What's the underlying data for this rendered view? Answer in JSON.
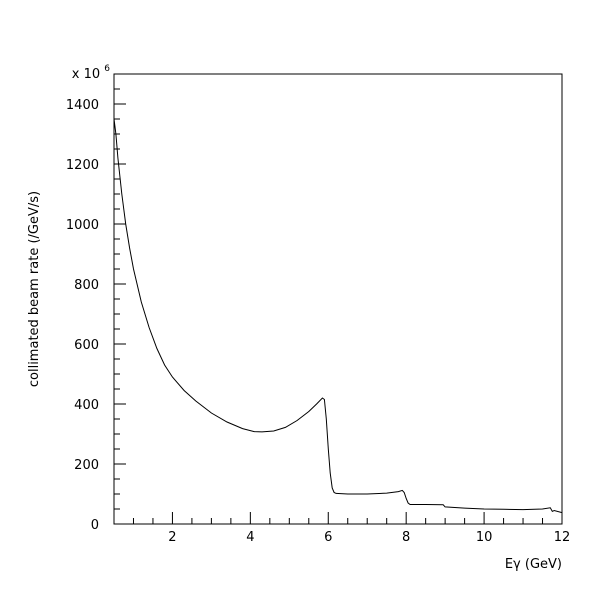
{
  "chart_data": {
    "type": "line",
    "title": "",
    "xlabel": "Eγ (GeV)",
    "ylabel": "collimated beam rate (/GeV/s)",
    "y_multiplier_label": "x 10",
    "y_multiplier_exponent": "6",
    "xlim": [
      0.5,
      12
    ],
    "ylim": [
      0,
      1500
    ],
    "x_ticks": [
      2,
      4,
      6,
      8,
      10,
      12
    ],
    "x_tick_labels": [
      "2",
      "4",
      "6",
      "8",
      "10",
      "12"
    ],
    "y_ticks": [
      0,
      200,
      400,
      600,
      800,
      1000,
      1200,
      1400
    ],
    "y_tick_labels": [
      "0",
      "200",
      "400",
      "600",
      "800",
      "1000",
      "1200",
      "1400"
    ],
    "grid": false,
    "legend": "none",
    "line_color": "#000000",
    "series": [
      {
        "x": [
          0.5,
          0.55,
          0.6,
          0.7,
          0.8,
          0.9,
          1.0,
          1.2,
          1.4,
          1.6,
          1.8,
          2.0,
          2.3,
          2.6,
          3.0,
          3.4,
          3.8,
          4.1,
          4.3,
          4.6,
          4.9,
          5.2,
          5.5,
          5.7,
          5.85,
          5.9,
          5.95,
          6.0,
          6.05,
          6.1,
          6.15,
          6.2,
          6.5,
          7.0,
          7.5,
          7.8,
          7.9,
          7.95,
          8.0,
          8.05,
          8.1,
          8.5,
          8.95,
          9.0,
          9.5,
          10.0,
          10.5,
          11.0,
          11.5,
          11.7,
          11.75,
          11.8,
          12.0
        ],
        "y": [
          1350,
          1300,
          1220,
          1100,
          1000,
          920,
          850,
          740,
          655,
          585,
          530,
          490,
          445,
          410,
          370,
          340,
          318,
          308,
          307,
          310,
          322,
          345,
          375,
          400,
          420,
          415,
          350,
          250,
          170,
          120,
          105,
          102,
          100,
          100,
          103,
          108,
          112,
          105,
          85,
          70,
          65,
          65,
          64,
          57,
          53,
          50,
          49,
          48,
          50,
          54,
          42,
          45,
          38
        ]
      }
    ]
  }
}
